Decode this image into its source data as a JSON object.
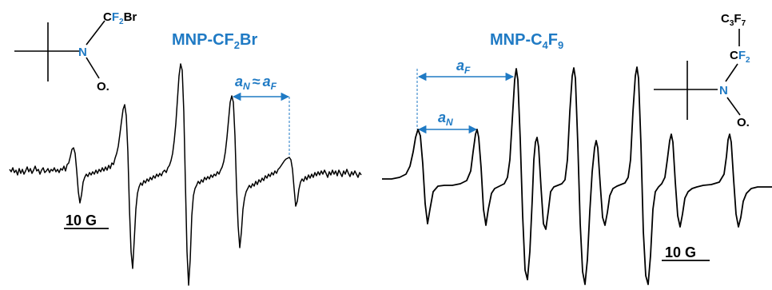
{
  "left_panel": {
    "title_main": "MNP-CF",
    "title_sub": "2",
    "title_end": "Br",
    "structure": {
      "substituent_c": "C",
      "substituent_f": "F",
      "substituent_sub": "2",
      "substituent_br": "Br",
      "nitrogen": "N",
      "oxygen": "O."
    },
    "coupling": {
      "a1": "a",
      "a1_sub": "N",
      "approx": "≈",
      "a2": "a",
      "a2_sub": "F"
    },
    "scale_label": "10 G"
  },
  "right_panel": {
    "title_main": "MNP-C",
    "title_sub1": "4",
    "title_mid": "F",
    "title_sub2": "9",
    "structure": {
      "top_c": "C",
      "top_sub1": "3",
      "top_f": "F",
      "top_sub2": "7",
      "mid_c": "C",
      "mid_f": "F",
      "mid_sub": "2",
      "nitrogen": "N",
      "oxygen": "O."
    },
    "coupling_f": {
      "a": "a",
      "sub": "F"
    },
    "coupling_n": {
      "a": "a",
      "sub": "N"
    },
    "scale_label": "10 G"
  },
  "colors": {
    "accent_blue": "#1f7ac4",
    "trace": "#000000"
  }
}
